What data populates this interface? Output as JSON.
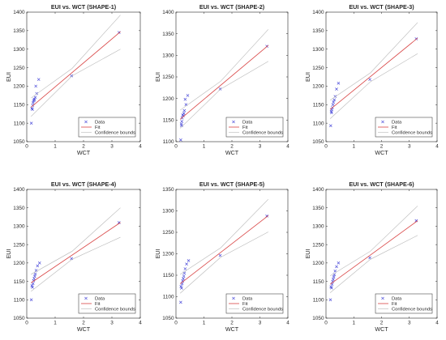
{
  "figure": {
    "background": "#ffffff"
  },
  "colors": {
    "data": "#3b3bd6",
    "fit": "#d94545",
    "bounds": "#b8b8b8",
    "axis": "#262626"
  },
  "chart_data": [
    {
      "type": "scatter",
      "title": "EUI vs. WCT (SHAPE-1)",
      "xlabel": "WCT",
      "ylabel": "EUI",
      "xlim": [
        0,
        4
      ],
      "ylim": [
        1050,
        1400
      ],
      "xticks": [
        0,
        1,
        2,
        3,
        4
      ],
      "yticks": [
        1050,
        1100,
        1150,
        1200,
        1250,
        1300,
        1350,
        1400
      ],
      "legend_position": "bottom-right",
      "legend": [
        "Data",
        "Fit",
        "Confidence bounds"
      ],
      "series": [
        {
          "name": "Data",
          "kind": "points",
          "x": [
            0.16,
            0.18,
            0.2,
            0.21,
            0.22,
            0.24,
            0.26,
            0.27,
            0.3,
            0.32,
            0.35,
            0.42,
            1.58,
            3.25
          ],
          "y": [
            1100,
            1140,
            1137,
            1148,
            1155,
            1160,
            1165,
            1162,
            1170,
            1200,
            1180,
            1218,
            1228,
            1345
          ]
        },
        {
          "name": "Fit",
          "kind": "line",
          "x": [
            0.15,
            3.3
          ],
          "y": [
            1143,
            1347
          ]
        },
        {
          "name": "Confidence bounds",
          "kind": "upper",
          "x": [
            0.15,
            1.6,
            3.3
          ],
          "y": [
            1168,
            1248,
            1392
          ]
        },
        {
          "name": "Confidence bounds",
          "kind": "lower",
          "x": [
            0.15,
            1.6,
            3.3
          ],
          "y": [
            1118,
            1228,
            1300
          ]
        }
      ]
    },
    {
      "type": "scatter",
      "title": "EUI vs. WCT (SHAPE-2)",
      "xlabel": "WCT",
      "ylabel": "EUI",
      "xlim": [
        0,
        4
      ],
      "ylim": [
        1100,
        1400
      ],
      "xticks": [
        0,
        1,
        2,
        3,
        4
      ],
      "yticks": [
        1100,
        1150,
        1200,
        1250,
        1300,
        1350,
        1400
      ],
      "legend_position": "bottom-right",
      "legend": [
        "Data",
        "Fit",
        "Confidence bounds"
      ],
      "series": [
        {
          "name": "Data",
          "kind": "points",
          "x": [
            0.17,
            0.19,
            0.2,
            0.21,
            0.22,
            0.24,
            0.26,
            0.28,
            0.3,
            0.33,
            0.36,
            0.42,
            1.58,
            3.25
          ],
          "y": [
            1104,
            1141,
            1137,
            1147,
            1155,
            1162,
            1160,
            1166,
            1172,
            1198,
            1186,
            1207,
            1222,
            1321
          ]
        },
        {
          "name": "Fit",
          "kind": "line",
          "x": [
            0.15,
            3.3
          ],
          "y": [
            1152,
            1323
          ]
        },
        {
          "name": "Confidence bounds",
          "kind": "upper",
          "x": [
            0.15,
            1.6,
            3.3
          ],
          "y": [
            1173,
            1240,
            1360
          ]
        },
        {
          "name": "Confidence bounds",
          "kind": "lower",
          "x": [
            0.15,
            1.6,
            3.3
          ],
          "y": [
            1131,
            1222,
            1286
          ]
        }
      ]
    },
    {
      "type": "scatter",
      "title": "EUI vs. WCT (SHAPE-3)",
      "xlabel": "WCT",
      "ylabel": "EUI",
      "xlim": [
        0,
        4
      ],
      "ylim": [
        1050,
        1400
      ],
      "xticks": [
        0,
        1,
        2,
        3,
        4
      ],
      "yticks": [
        1050,
        1100,
        1150,
        1200,
        1250,
        1300,
        1350,
        1400
      ],
      "legend_position": "bottom-right",
      "legend": [
        "Data",
        "Fit",
        "Confidence bounds"
      ],
      "series": [
        {
          "name": "Data",
          "kind": "points",
          "x": [
            0.17,
            0.19,
            0.2,
            0.21,
            0.23,
            0.25,
            0.27,
            0.3,
            0.33,
            0.38,
            0.45,
            1.58,
            3.25
          ],
          "y": [
            1093,
            1132,
            1128,
            1137,
            1142,
            1150,
            1157,
            1163,
            1172,
            1192,
            1208,
            1218,
            1328
          ]
        },
        {
          "name": "Fit",
          "kind": "line",
          "x": [
            0.15,
            3.3
          ],
          "y": [
            1137,
            1330
          ]
        },
        {
          "name": "Confidence bounds",
          "kind": "upper",
          "x": [
            0.15,
            1.6,
            3.3
          ],
          "y": [
            1162,
            1236,
            1372
          ]
        },
        {
          "name": "Confidence bounds",
          "kind": "lower",
          "x": [
            0.15,
            1.6,
            3.3
          ],
          "y": [
            1112,
            1212,
            1288
          ]
        }
      ]
    },
    {
      "type": "scatter",
      "title": "EUI vs. WCT (SHAPE-4)",
      "xlabel": "WCT",
      "ylabel": "EUI",
      "xlim": [
        0,
        4
      ],
      "ylim": [
        1050,
        1400
      ],
      "xticks": [
        0,
        1,
        2,
        3,
        4
      ],
      "yticks": [
        1050,
        1100,
        1150,
        1200,
        1250,
        1300,
        1350,
        1400
      ],
      "legend_position": "bottom-right",
      "legend": [
        "Data",
        "Fit",
        "Confidence bounds"
      ],
      "series": [
        {
          "name": "Data",
          "kind": "points",
          "x": [
            0.16,
            0.18,
            0.2,
            0.22,
            0.24,
            0.26,
            0.28,
            0.3,
            0.33,
            0.38,
            0.45,
            1.58,
            3.25
          ],
          "y": [
            1100,
            1138,
            1134,
            1144,
            1152,
            1158,
            1164,
            1170,
            1180,
            1192,
            1200,
            1212,
            1310
          ]
        },
        {
          "name": "Fit",
          "kind": "line",
          "x": [
            0.15,
            3.3
          ],
          "y": [
            1146,
            1310
          ]
        },
        {
          "name": "Confidence bounds",
          "kind": "upper",
          "x": [
            0.15,
            1.6,
            3.3
          ],
          "y": [
            1169,
            1232,
            1350
          ]
        },
        {
          "name": "Confidence bounds",
          "kind": "lower",
          "x": [
            0.15,
            1.6,
            3.3
          ],
          "y": [
            1123,
            1210,
            1270
          ]
        }
      ]
    },
    {
      "type": "scatter",
      "title": "EUI vs. WCT (SHAPE-5)",
      "xlabel": "WCT",
      "ylabel": "EUI",
      "xlim": [
        0,
        4
      ],
      "ylim": [
        1050,
        1350
      ],
      "xticks": [
        0,
        1,
        2,
        3,
        4
      ],
      "yticks": [
        1050,
        1100,
        1150,
        1200,
        1250,
        1300,
        1350
      ],
      "legend_position": "bottom-right",
      "legend": [
        "Data",
        "Fit",
        "Confidence bounds"
      ],
      "series": [
        {
          "name": "Data",
          "kind": "points",
          "x": [
            0.17,
            0.18,
            0.2,
            0.22,
            0.24,
            0.26,
            0.28,
            0.3,
            0.33,
            0.38,
            0.45,
            1.58,
            3.25
          ],
          "y": [
            1087,
            1124,
            1120,
            1130,
            1137,
            1142,
            1148,
            1155,
            1165,
            1176,
            1184,
            1196,
            1288
          ]
        },
        {
          "name": "Fit",
          "kind": "line",
          "x": [
            0.15,
            3.3
          ],
          "y": [
            1130,
            1289
          ]
        },
        {
          "name": "Confidence bounds",
          "kind": "upper",
          "x": [
            0.15,
            1.6,
            3.3
          ],
          "y": [
            1152,
            1214,
            1327
          ]
        },
        {
          "name": "Confidence bounds",
          "kind": "lower",
          "x": [
            0.15,
            1.6,
            3.3
          ],
          "y": [
            1108,
            1192,
            1251
          ]
        }
      ]
    },
    {
      "type": "scatter",
      "title": "EUI vs. WCT (SHAPE-6)",
      "xlabel": "WCT",
      "ylabel": "EUI",
      "xlim": [
        0,
        4
      ],
      "ylim": [
        1050,
        1400
      ],
      "xticks": [
        0,
        1,
        2,
        3,
        4
      ],
      "yticks": [
        1050,
        1100,
        1150,
        1200,
        1250,
        1300,
        1350,
        1400
      ],
      "legend_position": "bottom-right",
      "legend": [
        "Data",
        "Fit",
        "Confidence bounds"
      ],
      "series": [
        {
          "name": "Data",
          "kind": "points",
          "x": [
            0.16,
            0.18,
            0.2,
            0.22,
            0.24,
            0.26,
            0.28,
            0.3,
            0.33,
            0.38,
            0.45,
            1.58,
            3.25
          ],
          "y": [
            1100,
            1135,
            1132,
            1142,
            1150,
            1156,
            1162,
            1168,
            1178,
            1190,
            1200,
            1214,
            1315
          ]
        },
        {
          "name": "Fit",
          "kind": "line",
          "x": [
            0.15,
            3.3
          ],
          "y": [
            1142,
            1315
          ]
        },
        {
          "name": "Confidence bounds",
          "kind": "upper",
          "x": [
            0.15,
            1.6,
            3.3
          ],
          "y": [
            1165,
            1232,
            1355
          ]
        },
        {
          "name": "Confidence bounds",
          "kind": "lower",
          "x": [
            0.15,
            1.6,
            3.3
          ],
          "y": [
            1119,
            1210,
            1275
          ]
        }
      ]
    }
  ]
}
